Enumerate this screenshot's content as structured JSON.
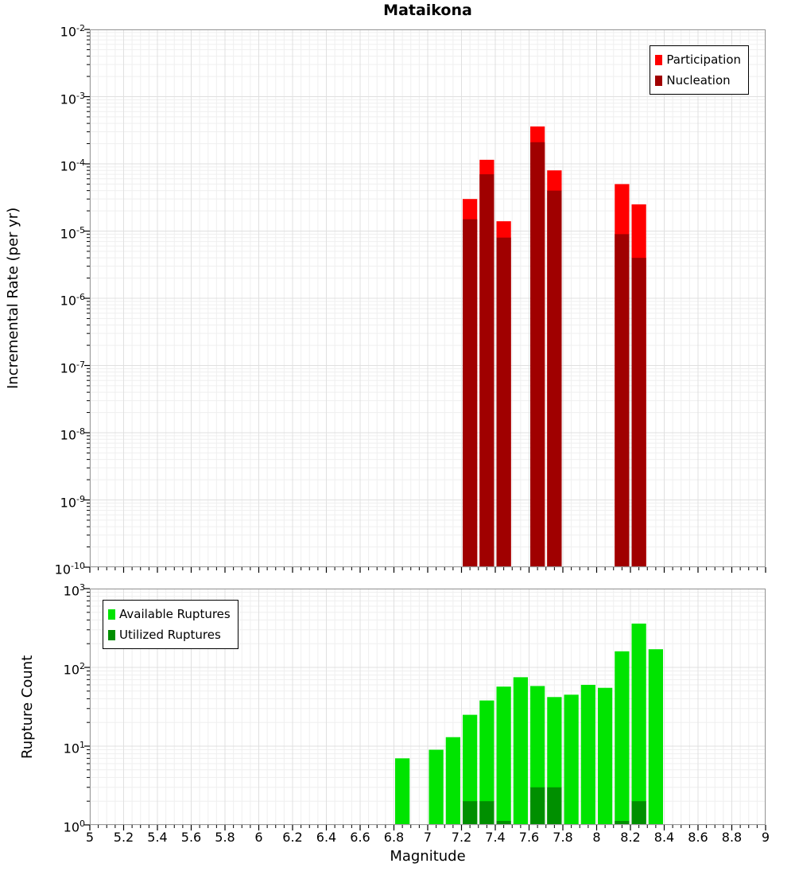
{
  "page_title": "Mataikona",
  "x_axis": {
    "label": "Magnitude",
    "tick_labels": [
      "5",
      "5.2",
      "5.4",
      "5.6",
      "5.8",
      "6",
      "6.2",
      "6.4",
      "6.6",
      "6.8",
      "7",
      "7.2",
      "7.4",
      "7.6",
      "7.8",
      "8",
      "8.2",
      "8.4",
      "8.6",
      "8.8",
      "9"
    ]
  },
  "chart_data": [
    {
      "name": "incremental-rate",
      "type": "bar",
      "title": "Mataikona",
      "xlabel": "Magnitude",
      "ylabel": "Incremental Rate (per yr)",
      "x_range": [
        5,
        9
      ],
      "x_major_tick": 0.2,
      "x_minor_tick": 0.05,
      "bin_width": 0.1,
      "y_scale": "log10",
      "y_exponent_range": [
        -10,
        -2
      ],
      "y_tick_exponents": [
        -2,
        -3,
        -4,
        -5,
        -6,
        -7,
        -8,
        -9,
        -10
      ],
      "grid": true,
      "legend_position": "top-right",
      "series": [
        {
          "name": "Participation",
          "color": "#ff0000",
          "points": [
            {
              "x": 7.25,
              "y": 3e-05
            },
            {
              "x": 7.35,
              "y": 0.000115
            },
            {
              "x": 7.45,
              "y": 1.4e-05
            },
            {
              "x": 7.65,
              "y": 0.00036
            },
            {
              "x": 7.75,
              "y": 8e-05
            },
            {
              "x": 8.15,
              "y": 5e-05
            },
            {
              "x": 8.25,
              "y": 2.5e-05
            }
          ]
        },
        {
          "name": "Nucleation",
          "color": "#a00000",
          "points": [
            {
              "x": 7.25,
              "y": 1.5e-05
            },
            {
              "x": 7.35,
              "y": 7e-05
            },
            {
              "x": 7.45,
              "y": 8e-06
            },
            {
              "x": 7.65,
              "y": 0.00021
            },
            {
              "x": 7.75,
              "y": 4e-05
            },
            {
              "x": 8.15,
              "y": 9e-06
            },
            {
              "x": 8.25,
              "y": 4e-06
            }
          ]
        }
      ]
    },
    {
      "name": "rupture-count",
      "type": "bar",
      "xlabel": "Magnitude",
      "ylabel": "Rupture Count",
      "x_range": [
        5,
        9
      ],
      "x_major_tick": 0.2,
      "x_minor_tick": 0.05,
      "bin_width": 0.1,
      "y_scale": "log10",
      "y_exponent_range": [
        0,
        3
      ],
      "y_tick_exponents": [
        3,
        2,
        1,
        0
      ],
      "grid": true,
      "legend_position": "top-left",
      "series": [
        {
          "name": "Available Ruptures",
          "color": "#00e400",
          "points": [
            {
              "x": 6.85,
              "y": 7
            },
            {
              "x": 7.05,
              "y": 9
            },
            {
              "x": 7.15,
              "y": 13
            },
            {
              "x": 7.25,
              "y": 25
            },
            {
              "x": 7.35,
              "y": 38
            },
            {
              "x": 7.45,
              "y": 57
            },
            {
              "x": 7.55,
              "y": 75
            },
            {
              "x": 7.65,
              "y": 58
            },
            {
              "x": 7.75,
              "y": 42
            },
            {
              "x": 7.85,
              "y": 45
            },
            {
              "x": 7.95,
              "y": 60
            },
            {
              "x": 8.05,
              "y": 55
            },
            {
              "x": 8.15,
              "y": 160
            },
            {
              "x": 8.25,
              "y": 360
            },
            {
              "x": 8.35,
              "y": 170
            }
          ]
        },
        {
          "name": "Utilized Ruptures",
          "color": "#008f00",
          "points": [
            {
              "x": 7.25,
              "y": 2
            },
            {
              "x": 7.35,
              "y": 2
            },
            {
              "x": 7.45,
              "y": 1
            },
            {
              "x": 7.65,
              "y": 3
            },
            {
              "x": 7.75,
              "y": 3
            },
            {
              "x": 8.15,
              "y": 1
            },
            {
              "x": 8.25,
              "y": 2
            }
          ]
        }
      ]
    }
  ]
}
